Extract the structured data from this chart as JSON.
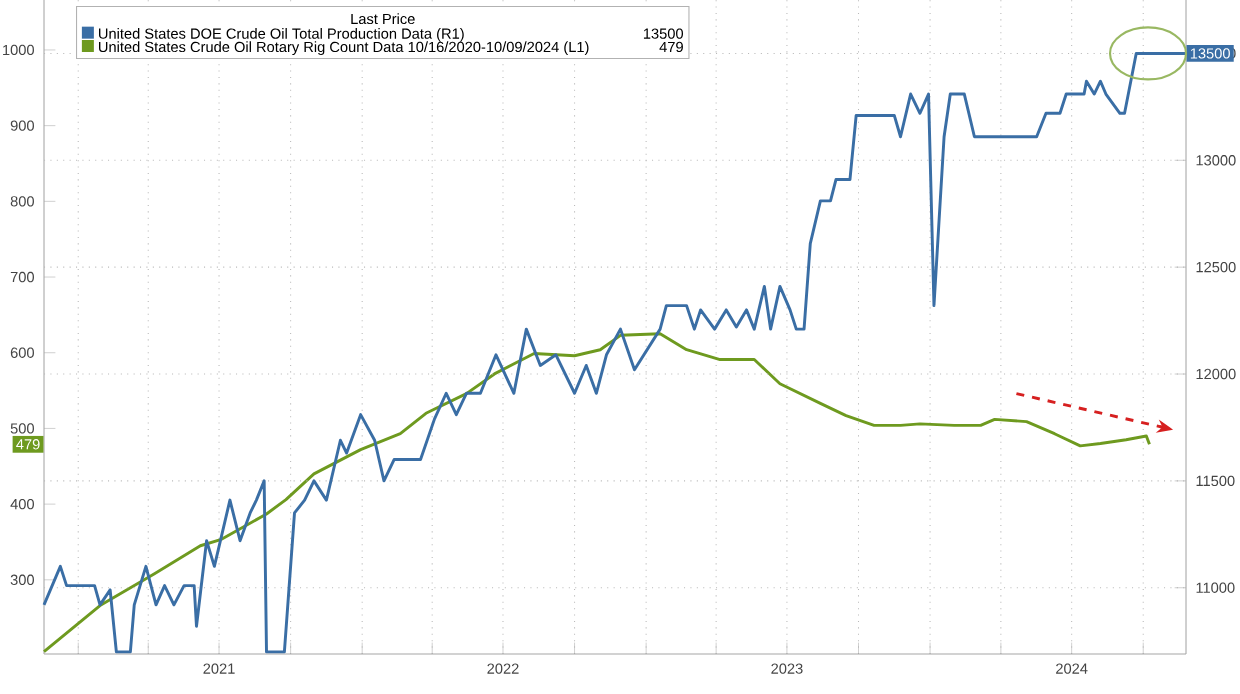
{
  "chart_data": {
    "type": "line",
    "legend": "top left",
    "legend_title": "Last Price",
    "grid": true,
    "xlim": [
      "2020-11-18",
      "2024-11-25"
    ],
    "xticks": [
      {
        "value": "2021-01-01",
        "label": null
      },
      {
        "value": "2021-04-01",
        "label": null
      },
      {
        "value": "2021-07-01",
        "label": "2021"
      },
      {
        "value": "2021-10-01",
        "label": null
      },
      {
        "value": "2022-01-01",
        "label": null
      },
      {
        "value": "2022-04-01",
        "label": null
      },
      {
        "value": "2022-07-01",
        "label": "2022"
      },
      {
        "value": "2022-10-01",
        "label": null
      },
      {
        "value": "2023-01-01",
        "label": null
      },
      {
        "value": "2023-04-01",
        "label": null
      },
      {
        "value": "2023-07-01",
        "label": "2023"
      },
      {
        "value": "2023-10-01",
        "label": null
      },
      {
        "value": "2024-01-01",
        "label": null
      },
      {
        "value": "2024-04-01",
        "label": null
      },
      {
        "value": "2024-07-01",
        "label": "2024"
      },
      {
        "value": "2024-10-01",
        "label": null
      }
    ],
    "ylim": [
      202,
      1066
    ],
    "yticks": [
      300,
      400,
      500,
      600,
      700,
      800,
      900,
      1000
    ],
    "y2lim": [
      10690,
      13750
    ],
    "y2ticks": [
      11000,
      11500,
      12000,
      12500,
      13000,
      13500
    ],
    "series": [
      {
        "name": "United States DOE Crude Oil Total Production Data  (R1)",
        "color": "#3a6ea5",
        "axis": "y2",
        "x": [
          "2020-11-18",
          "2020-12-09",
          "2020-12-17",
          "2021-01-22",
          "2021-01-29",
          "2021-02-11",
          "2021-02-19",
          "2021-03-09",
          "2021-03-14",
          "2021-03-29",
          "2021-04-11",
          "2021-04-22",
          "2021-05-04",
          "2021-05-17",
          "2021-05-30",
          "2021-06-02",
          "2021-06-15",
          "2021-06-25",
          "2021-07-15",
          "2021-07-28",
          "2021-08-10",
          "2021-08-18",
          "2021-08-28",
          "2021-08-31",
          "2021-09-23",
          "2021-10-06",
          "2021-10-19",
          "2021-10-31",
          "2021-11-16",
          "2021-12-04",
          "2021-12-12",
          "2021-12-30",
          "2022-01-17",
          "2022-01-29",
          "2022-02-11",
          "2022-03-17",
          "2022-04-04",
          "2022-04-19",
          "2022-05-02",
          "2022-05-15",
          "2022-06-02",
          "2022-06-22",
          "2022-07-15",
          "2022-07-31",
          "2022-08-18",
          "2022-09-07",
          "2022-10-01",
          "2022-10-16",
          "2022-10-29",
          "2022-11-11",
          "2022-11-29",
          "2022-12-17",
          "2023-01-19",
          "2023-01-27",
          "2023-02-22",
          "2023-03-04",
          "2023-03-12",
          "2023-03-30",
          "2023-04-14",
          "2023-04-27",
          "2023-05-10",
          "2023-05-20",
          "2023-06-02",
          "2023-06-10",
          "2023-06-22",
          "2023-07-05",
          "2023-07-13",
          "2023-07-23",
          "2023-07-31",
          "2023-08-13",
          "2023-08-26",
          "2023-09-02",
          "2023-09-20",
          "2023-09-28",
          "2023-11-16",
          "2023-11-24",
          "2023-12-07",
          "2023-12-19",
          "2023-12-30",
          "2024-01-06",
          "2024-01-19",
          "2024-01-27",
          "2024-02-14",
          "2024-02-27",
          "2024-05-17",
          "2024-05-29",
          "2024-06-16",
          "2024-06-24",
          "2024-07-17",
          "2024-07-20",
          "2024-07-30",
          "2024-08-07",
          "2024-08-14",
          "2024-09-01",
          "2024-09-07",
          "2024-09-22",
          "2024-11-25"
        ],
        "values": [
          10920,
          11100,
          11010,
          11010,
          10920,
          10990,
          10700,
          10700,
          10920,
          11100,
          10920,
          11010,
          10920,
          11010,
          11010,
          10820,
          11220,
          11100,
          11410,
          11220,
          11350,
          11410,
          11500,
          10700,
          10700,
          11350,
          11410,
          11500,
          11410,
          11690,
          11630,
          11810,
          11690,
          11500,
          11600,
          11600,
          11790,
          11910,
          11810,
          11910,
          11910,
          12090,
          11910,
          12210,
          12040,
          12090,
          11910,
          12040,
          11910,
          12090,
          12210,
          12020,
          12210,
          12320,
          12320,
          12210,
          12300,
          12210,
          12300,
          12220,
          12300,
          12210,
          12410,
          12210,
          12410,
          12300,
          12210,
          12210,
          12610,
          12810,
          12810,
          12910,
          12910,
          13210,
          13210,
          13110,
          13310,
          13220,
          13310,
          12320,
          13110,
          13310,
          13310,
          13110,
          13110,
          13220,
          13220,
          13310,
          13310,
          13370,
          13310,
          13370,
          13310,
          13220,
          13220,
          13500,
          13500
        ]
      },
      {
        "name": "United States Crude Oil Rotary Rig Count Data 10/16/2020-10/09/2024  (L1)",
        "color": "#6e9a1f",
        "axis": "y",
        "x": [
          "2020-11-18",
          "2021-01-29",
          "2021-04-09",
          "2021-06-07",
          "2021-07-03",
          "2021-08-31",
          "2021-09-25",
          "2021-10-31",
          "2021-12-30",
          "2022-02-19",
          "2022-03-24",
          "2022-05-15",
          "2022-06-20",
          "2022-08-10",
          "2022-10-01",
          "2022-11-03",
          "2022-11-29",
          "2023-01-19",
          "2023-02-22",
          "2023-04-06",
          "2023-05-20",
          "2023-06-22",
          "2023-08-13",
          "2023-09-15",
          "2023-10-21",
          "2023-11-24",
          "2023-12-19",
          "2024-02-01",
          "2024-03-06",
          "2024-03-24",
          "2024-05-04",
          "2024-06-09",
          "2024-07-12",
          "2024-08-07",
          "2024-09-09",
          "2024-10-05",
          "2024-10-09"
        ],
        "values": [
          205,
          266,
          308,
          345,
          353,
          387,
          406,
          440,
          472,
          493,
          520,
          546,
          572,
          599,
          596,
          604,
          623,
          625,
          604,
          591,
          591,
          559,
          533,
          517,
          504,
          504,
          506,
          504,
          504,
          512,
          509,
          493,
          477,
          480,
          485,
          490,
          479
        ]
      },
      {
        "color": "#d62020",
        "axis": "y",
        "line_style": "dashed",
        "x": [
          "2024-04-21",
          "2024-10-28"
        ],
        "values": [
          546,
          501
        ]
      }
    ],
    "annotations": [
      "13500",
      "479"
    ]
  }
}
